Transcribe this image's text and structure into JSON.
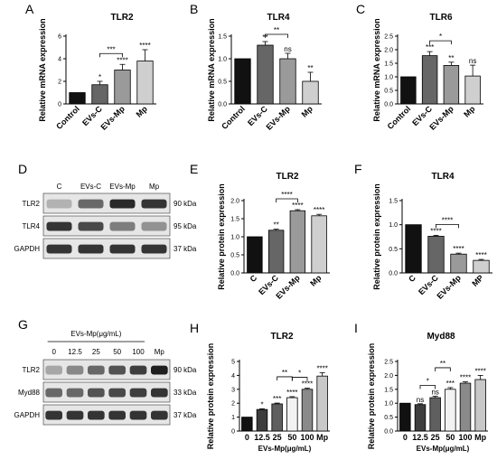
{
  "charts": [
    {
      "id": "A",
      "panel": "A",
      "type": "bar",
      "title": "TLR2",
      "ylabel": "Relative mRNA expression",
      "xlabel": "",
      "categories": [
        "Control",
        "EVs-C",
        "EVs-Mp",
        "Mp"
      ],
      "values": [
        1.0,
        1.7,
        3.0,
        3.8
      ],
      "errors": [
        0,
        0.3,
        0.5,
        1.0
      ],
      "ylim": [
        0,
        6
      ],
      "yticks": [
        "0",
        "2",
        "4",
        "6"
      ],
      "sig": [
        "",
        "*",
        "****",
        "****"
      ],
      "brackets": [
        {
          "from": 1,
          "to": 2,
          "label": "***"
        }
      ],
      "colors": [
        "#111111",
        "#666666",
        "#9a9a9a",
        "#cfcfcf"
      ]
    },
    {
      "id": "B",
      "panel": "B",
      "type": "bar",
      "title": "TLR4",
      "ylabel": "Relative mRNA expression",
      "xlabel": "",
      "categories": [
        "Control",
        "EVs-C",
        "EVs-Mp",
        "Mp"
      ],
      "values": [
        1.0,
        1.3,
        1.0,
        0.5
      ],
      "errors": [
        0,
        0.08,
        0.12,
        0.2
      ],
      "ylim": [
        0,
        1.5
      ],
      "yticks": [
        "0.0",
        "0.5",
        "1.0",
        "1.5"
      ],
      "sig": [
        "",
        "**",
        "ns",
        "**"
      ],
      "brackets": [
        {
          "from": 1,
          "to": 2,
          "label": "**"
        }
      ],
      "colors": [
        "#111111",
        "#666666",
        "#9a9a9a",
        "#cfcfcf"
      ]
    },
    {
      "id": "C",
      "panel": "C",
      "type": "bar",
      "title": "TLR6",
      "ylabel": "Relative mRNA expression",
      "xlabel": "",
      "categories": [
        "Control",
        "EVs-C",
        "EVs-Mp",
        "Mp"
      ],
      "values": [
        1.0,
        1.78,
        1.42,
        1.03
      ],
      "errors": [
        0,
        0.15,
        0.12,
        0.4
      ],
      "ylim": [
        0,
        2.5
      ],
      "yticks": [
        "0.0",
        "0.5",
        "1.0",
        "1.5",
        "2.0",
        "2.5"
      ],
      "sig": [
        "",
        "***",
        "**",
        "ns"
      ],
      "brackets": [
        {
          "from": 1,
          "to": 2,
          "label": "*"
        }
      ],
      "colors": [
        "#111111",
        "#666666",
        "#9a9a9a",
        "#cfcfcf"
      ]
    },
    {
      "id": "E",
      "panel": "E",
      "type": "bar",
      "title": "TLR2",
      "ylabel": "Relative protein expression",
      "xlabel": "",
      "categories": [
        "C",
        "EVs-C",
        "EVs-Mp",
        "Mp"
      ],
      "values": [
        1.0,
        1.18,
        1.72,
        1.58
      ],
      "errors": [
        0,
        0.03,
        0.03,
        0.04
      ],
      "ylim": [
        0,
        2.0
      ],
      "yticks": [
        "0.0",
        "0.5",
        "1.0",
        "1.5",
        "2.0"
      ],
      "sig": [
        "",
        "**",
        "****",
        "****"
      ],
      "brackets": [
        {
          "from": 1,
          "to": 2,
          "label": "****"
        }
      ],
      "colors": [
        "#111111",
        "#666666",
        "#9a9a9a",
        "#cfcfcf"
      ]
    },
    {
      "id": "F",
      "panel": "F",
      "type": "bar",
      "title": "TLR4",
      "ylabel": "Relative protein expression",
      "xlabel": "",
      "categories": [
        "C",
        "EVs-C",
        "EVs-Mp",
        "MP"
      ],
      "values": [
        1.0,
        0.76,
        0.39,
        0.26
      ],
      "errors": [
        0,
        0.02,
        0.02,
        0.02
      ],
      "ylim": [
        0,
        1.5
      ],
      "yticks": [
        "0.0",
        "0.5",
        "1.0",
        "1.5"
      ],
      "sig": [
        "",
        "****",
        "****",
        "****"
      ],
      "brackets": [
        {
          "from": 1,
          "to": 2,
          "label": "****"
        }
      ],
      "colors": [
        "#111111",
        "#666666",
        "#9a9a9a",
        "#cfcfcf"
      ]
    },
    {
      "id": "H",
      "panel": "H",
      "type": "bar",
      "title": "TLR2",
      "ylabel": "Relative protein expression",
      "xlabel": "EVs-Mp(μg/mL)",
      "categories": [
        "0",
        "12.5",
        "25",
        "50",
        "100",
        "Mp"
      ],
      "values": [
        1.0,
        1.55,
        1.95,
        2.4,
        3.0,
        3.95
      ],
      "errors": [
        0,
        0.05,
        0.06,
        0.07,
        0.08,
        0.25
      ],
      "ylim": [
        0,
        5
      ],
      "yticks": [
        "0",
        "1",
        "2",
        "3",
        "4",
        "5"
      ],
      "sig": [
        "",
        "*",
        "***",
        "****",
        "****",
        "****"
      ],
      "brackets": [
        {
          "from": 3,
          "to": 4,
          "label": "*"
        },
        {
          "from": 2,
          "to": 3,
          "label": "**"
        }
      ],
      "colors": [
        "#111111",
        "#3d3d3d",
        "#5f5f5f",
        "#f2f2f2",
        "#8a8a8a",
        "#c8c8c8"
      ]
    },
    {
      "id": "I",
      "panel": "I",
      "type": "bar",
      "title": "Myd88",
      "ylabel": "Relative protein expression",
      "xlabel": "EVs-Mp(μg/mL)",
      "categories": [
        "0",
        "12.5",
        "25",
        "50",
        "100",
        "Mp"
      ],
      "values": [
        1.0,
        0.95,
        1.2,
        1.5,
        1.72,
        1.85
      ],
      "errors": [
        0,
        0.03,
        0.05,
        0.06,
        0.05,
        0.15
      ],
      "ylim": [
        0,
        2.5
      ],
      "yticks": [
        "0.0",
        "0.5",
        "1.0",
        "1.5",
        "2.0",
        "2.5"
      ],
      "sig": [
        "",
        "ns",
        "ns",
        "***",
        "****",
        "****"
      ],
      "brackets": [
        {
          "from": 1,
          "to": 2,
          "label": "*"
        },
        {
          "from": 2,
          "to": 3,
          "label": "**"
        }
      ],
      "colors": [
        "#111111",
        "#3d3d3d",
        "#5f5f5f",
        "#f2f2f2",
        "#8a8a8a",
        "#c8c8c8"
      ]
    }
  ],
  "blots": [
    {
      "id": "D",
      "panel": "D",
      "top_labels": [
        "C",
        "EVs-C",
        "EVs-Mp",
        "Mp"
      ],
      "header": "",
      "lanes": 4,
      "rows": [
        {
          "name": "TLR2",
          "kda": "90 kDa",
          "intensity": [
            0.25,
            0.6,
            0.9,
            0.85
          ]
        },
        {
          "name": "TLR4",
          "kda": "95 kDa",
          "intensity": [
            0.85,
            0.75,
            0.5,
            0.4
          ]
        },
        {
          "name": "GAPDH",
          "kda": "37 kDa",
          "intensity": [
            0.85,
            0.85,
            0.85,
            0.85
          ]
        }
      ]
    },
    {
      "id": "G",
      "panel": "G",
      "top_labels": [
        "0",
        "12.5",
        "25",
        "50",
        "100",
        "Mp"
      ],
      "header": "EVs-Mp(μg/mL)",
      "lanes": 6,
      "rows": [
        {
          "name": "TLR2",
          "kda": "90 kDa",
          "intensity": [
            0.3,
            0.45,
            0.6,
            0.7,
            0.8,
            0.95
          ]
        },
        {
          "name": "Myd88",
          "kda": "33 kDa",
          "intensity": [
            0.6,
            0.6,
            0.7,
            0.75,
            0.8,
            0.85
          ]
        },
        {
          "name": "GAPDH",
          "kda": "37 kDa",
          "intensity": [
            0.85,
            0.85,
            0.85,
            0.85,
            0.85,
            0.85
          ]
        }
      ]
    }
  ]
}
